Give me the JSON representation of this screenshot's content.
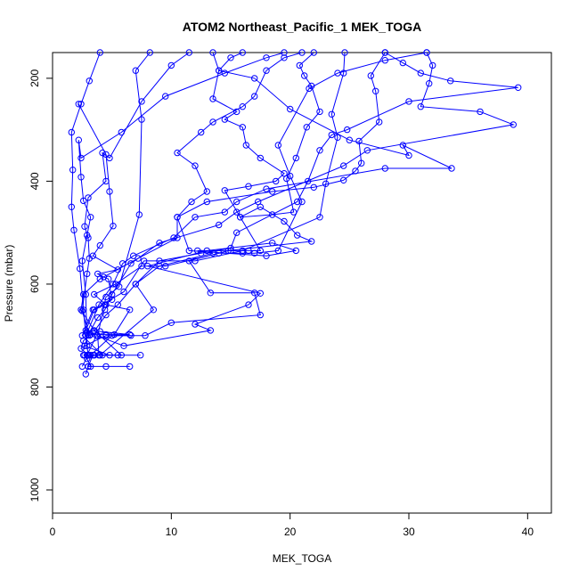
{
  "chart_data": {
    "type": "line",
    "title": "ATOM2 Northeast_Pacific_1 MEK_TOGA",
    "xlabel": "MEK_TOGA",
    "ylabel": "Pressure (mbar)",
    "xlim": [
      0,
      42
    ],
    "ylim": [
      1045,
      150
    ],
    "y_reversed": true,
    "x_ticks": [
      0,
      10,
      20,
      30,
      40
    ],
    "y_ticks": [
      200,
      400,
      600,
      800,
      1000
    ],
    "grid": false,
    "legend": "none",
    "color": "#0000ff",
    "markers": "open-circle",
    "series": [
      {
        "values": [
          {
            "x": 2.8,
            "y": 775
          },
          {
            "x": 3.0,
            "y": 760
          },
          {
            "x": 6.5,
            "y": 760
          },
          {
            "x": 4.5,
            "y": 760
          },
          {
            "x": 3.2,
            "y": 760
          },
          {
            "x": 2.9,
            "y": 745
          },
          {
            "x": 3.5,
            "y": 738
          },
          {
            "x": 5.5,
            "y": 738
          },
          {
            "x": 7.4,
            "y": 738
          },
          {
            "x": 3.0,
            "y": 738
          },
          {
            "x": 2.4,
            "y": 725
          },
          {
            "x": 2.6,
            "y": 710
          },
          {
            "x": 3.2,
            "y": 698
          },
          {
            "x": 4.5,
            "y": 698
          },
          {
            "x": 6.5,
            "y": 698
          },
          {
            "x": 4.0,
            "y": 692
          },
          {
            "x": 2.8,
            "y": 690
          },
          {
            "x": 3.5,
            "y": 650
          },
          {
            "x": 4.4,
            "y": 640
          },
          {
            "x": 5.0,
            "y": 630
          },
          {
            "x": 4.7,
            "y": 590
          },
          {
            "x": 4.3,
            "y": 586
          },
          {
            "x": 3.8,
            "y": 580
          },
          {
            "x": 5.5,
            "y": 572
          },
          {
            "x": 3.4,
            "y": 545
          },
          {
            "x": 4.0,
            "y": 525
          },
          {
            "x": 5.1,
            "y": 487
          },
          {
            "x": 4.8,
            "y": 420
          },
          {
            "x": 4.5,
            "y": 348
          },
          {
            "x": 2.2,
            "y": 250
          }
        ]
      },
      {
        "values": [
          {
            "x": 2.5,
            "y": 760
          },
          {
            "x": 3.0,
            "y": 738
          },
          {
            "x": 2.8,
            "y": 700
          },
          {
            "x": 2.6,
            "y": 650
          },
          {
            "x": 2.3,
            "y": 570
          },
          {
            "x": 1.8,
            "y": 495
          },
          {
            "x": 1.6,
            "y": 450
          },
          {
            "x": 1.7,
            "y": 378
          },
          {
            "x": 1.6,
            "y": 305
          },
          {
            "x": 2.4,
            "y": 250
          },
          {
            "x": 3.1,
            "y": 205
          },
          {
            "x": 4.0,
            "y": 150
          }
        ]
      },
      {
        "values": [
          {
            "x": 2.7,
            "y": 738
          },
          {
            "x": 3.2,
            "y": 738
          },
          {
            "x": 5.0,
            "y": 700
          },
          {
            "x": 7.8,
            "y": 700
          },
          {
            "x": 10.0,
            "y": 675
          },
          {
            "x": 17.5,
            "y": 660
          },
          {
            "x": 17.0,
            "y": 617
          },
          {
            "x": 13.3,
            "y": 617
          },
          {
            "x": 11.5,
            "y": 555
          },
          {
            "x": 14.8,
            "y": 535
          },
          {
            "x": 21.8,
            "y": 517
          },
          {
            "x": 20.6,
            "y": 505
          },
          {
            "x": 19.5,
            "y": 478
          },
          {
            "x": 17.5,
            "y": 450
          },
          {
            "x": 15.8,
            "y": 470
          },
          {
            "x": 14.5,
            "y": 418
          },
          {
            "x": 16.5,
            "y": 410
          },
          {
            "x": 18.8,
            "y": 400
          },
          {
            "x": 19.5,
            "y": 385
          },
          {
            "x": 17.5,
            "y": 355
          },
          {
            "x": 16.3,
            "y": 330
          },
          {
            "x": 16.0,
            "y": 295
          },
          {
            "x": 14.5,
            "y": 280
          },
          {
            "x": 15.5,
            "y": 265
          },
          {
            "x": 13.5,
            "y": 240
          },
          {
            "x": 14.0,
            "y": 185
          },
          {
            "x": 15.0,
            "y": 160
          },
          {
            "x": 16.0,
            "y": 150
          }
        ]
      },
      {
        "values": [
          {
            "x": 2.9,
            "y": 738
          },
          {
            "x": 3.7,
            "y": 700
          },
          {
            "x": 6.0,
            "y": 720
          },
          {
            "x": 13.3,
            "y": 690
          },
          {
            "x": 12.0,
            "y": 678
          },
          {
            "x": 16.5,
            "y": 640
          },
          {
            "x": 17.5,
            "y": 618
          },
          {
            "x": 8.0,
            "y": 565
          },
          {
            "x": 13.0,
            "y": 535
          },
          {
            "x": 18.5,
            "y": 520
          },
          {
            "x": 20.5,
            "y": 535
          },
          {
            "x": 18.0,
            "y": 545
          },
          {
            "x": 11.5,
            "y": 535
          },
          {
            "x": 10.5,
            "y": 470
          },
          {
            "x": 13.0,
            "y": 440
          },
          {
            "x": 18.5,
            "y": 420
          },
          {
            "x": 22.0,
            "y": 412
          },
          {
            "x": 24.5,
            "y": 398
          },
          {
            "x": 25.5,
            "y": 380
          },
          {
            "x": 26.0,
            "y": 365
          },
          {
            "x": 25.8,
            "y": 322
          },
          {
            "x": 27.5,
            "y": 285
          },
          {
            "x": 27.2,
            "y": 225
          },
          {
            "x": 26.8,
            "y": 195
          },
          {
            "x": 28.0,
            "y": 150
          }
        ]
      },
      {
        "values": [
          {
            "x": 3.0,
            "y": 760
          },
          {
            "x": 3.4,
            "y": 738
          },
          {
            "x": 4.0,
            "y": 738
          },
          {
            "x": 8.5,
            "y": 650
          },
          {
            "x": 7.0,
            "y": 600
          },
          {
            "x": 9.0,
            "y": 565
          },
          {
            "x": 13.5,
            "y": 540
          },
          {
            "x": 12.2,
            "y": 535
          },
          {
            "x": 15.0,
            "y": 535
          },
          {
            "x": 16.5,
            "y": 535
          },
          {
            "x": 17.5,
            "y": 535
          },
          {
            "x": 15.8,
            "y": 470
          },
          {
            "x": 18.5,
            "y": 465
          },
          {
            "x": 20.3,
            "y": 460
          },
          {
            "x": 19.7,
            "y": 395
          },
          {
            "x": 20.5,
            "y": 355
          },
          {
            "x": 21.4,
            "y": 295
          },
          {
            "x": 22.5,
            "y": 265
          },
          {
            "x": 21.8,
            "y": 215
          },
          {
            "x": 21.2,
            "y": 195
          },
          {
            "x": 20.8,
            "y": 175
          },
          {
            "x": 22.0,
            "y": 150
          }
        ]
      },
      {
        "values": [
          {
            "x": 3.5,
            "y": 738
          },
          {
            "x": 4.8,
            "y": 738
          },
          {
            "x": 2.7,
            "y": 720
          },
          {
            "x": 4.5,
            "y": 700
          },
          {
            "x": 6.6,
            "y": 700
          },
          {
            "x": 5.2,
            "y": 698
          },
          {
            "x": 6.5,
            "y": 650
          },
          {
            "x": 4.5,
            "y": 640
          },
          {
            "x": 3.5,
            "y": 620
          },
          {
            "x": 5.3,
            "y": 600
          },
          {
            "x": 7.5,
            "y": 565
          },
          {
            "x": 9.5,
            "y": 565
          },
          {
            "x": 14.0,
            "y": 540
          },
          {
            "x": 16.0,
            "y": 540
          },
          {
            "x": 17.0,
            "y": 540
          },
          {
            "x": 19.0,
            "y": 535
          },
          {
            "x": 21.0,
            "y": 440
          },
          {
            "x": 20.0,
            "y": 390
          },
          {
            "x": 19.0,
            "y": 330
          },
          {
            "x": 21.6,
            "y": 220
          },
          {
            "x": 24.0,
            "y": 190
          },
          {
            "x": 28.0,
            "y": 165
          },
          {
            "x": 31.5,
            "y": 150
          }
        ]
      },
      {
        "values": [
          {
            "x": 2.6,
            "y": 738
          },
          {
            "x": 5.8,
            "y": 738
          },
          {
            "x": 3.5,
            "y": 690
          },
          {
            "x": 2.4,
            "y": 650
          },
          {
            "x": 2.6,
            "y": 620
          },
          {
            "x": 4.0,
            "y": 590
          },
          {
            "x": 7.2,
            "y": 550
          },
          {
            "x": 10.5,
            "y": 510
          },
          {
            "x": 10.5,
            "y": 470
          },
          {
            "x": 11.7,
            "y": 440
          },
          {
            "x": 13.0,
            "y": 420
          },
          {
            "x": 12.0,
            "y": 370
          },
          {
            "x": 10.5,
            "y": 345
          },
          {
            "x": 12.5,
            "y": 305
          },
          {
            "x": 13.5,
            "y": 285
          },
          {
            "x": 16.0,
            "y": 255
          },
          {
            "x": 17.0,
            "y": 235
          },
          {
            "x": 18.0,
            "y": 185
          },
          {
            "x": 19.5,
            "y": 160
          },
          {
            "x": 21.0,
            "y": 150
          }
        ]
      },
      {
        "values": [
          {
            "x": 3.0,
            "y": 738
          },
          {
            "x": 3.9,
            "y": 738
          },
          {
            "x": 3.8,
            "y": 700
          },
          {
            "x": 4.5,
            "y": 625
          },
          {
            "x": 5.6,
            "y": 605
          },
          {
            "x": 7.3,
            "y": 465
          },
          {
            "x": 7.5,
            "y": 280
          },
          {
            "x": 7.0,
            "y": 185
          },
          {
            "x": 8.2,
            "y": 150
          }
        ]
      },
      {
        "values": [
          {
            "x": 4.2,
            "y": 738
          },
          {
            "x": 2.5,
            "y": 700
          },
          {
            "x": 3.4,
            "y": 650
          },
          {
            "x": 6.0,
            "y": 615
          },
          {
            "x": 7.7,
            "y": 555
          },
          {
            "x": 12.0,
            "y": 555
          },
          {
            "x": 16.0,
            "y": 535
          },
          {
            "x": 22.5,
            "y": 470
          },
          {
            "x": 23.0,
            "y": 405
          },
          {
            "x": 24.0,
            "y": 315
          },
          {
            "x": 23.5,
            "y": 270
          },
          {
            "x": 24.5,
            "y": 190
          },
          {
            "x": 24.6,
            "y": 150
          }
        ]
      },
      {
        "values": [
          {
            "x": 2.9,
            "y": 720
          },
          {
            "x": 2.8,
            "y": 620
          },
          {
            "x": 2.5,
            "y": 555
          },
          {
            "x": 2.9,
            "y": 505
          },
          {
            "x": 3.2,
            "y": 470
          },
          {
            "x": 2.6,
            "y": 438
          },
          {
            "x": 2.4,
            "y": 392
          },
          {
            "x": 2.2,
            "y": 320
          },
          {
            "x": 2.4,
            "y": 355
          },
          {
            "x": 5.8,
            "y": 305
          },
          {
            "x": 9.5,
            "y": 235
          },
          {
            "x": 14.5,
            "y": 190
          },
          {
            "x": 18.0,
            "y": 160
          },
          {
            "x": 19.5,
            "y": 150
          }
        ]
      },
      {
        "values": [
          {
            "x": 3.1,
            "y": 700
          },
          {
            "x": 2.5,
            "y": 652
          },
          {
            "x": 2.9,
            "y": 580
          },
          {
            "x": 3.1,
            "y": 550
          },
          {
            "x": 3.0,
            "y": 510
          },
          {
            "x": 2.7,
            "y": 488
          },
          {
            "x": 3.0,
            "y": 432
          },
          {
            "x": 4.5,
            "y": 400
          },
          {
            "x": 4.2,
            "y": 345
          },
          {
            "x": 4.8,
            "y": 355
          },
          {
            "x": 7.5,
            "y": 245
          },
          {
            "x": 10.0,
            "y": 175
          },
          {
            "x": 11.5,
            "y": 150
          }
        ]
      },
      {
        "values": [
          {
            "x": 3.0,
            "y": 698
          },
          {
            "x": 3.8,
            "y": 665
          },
          {
            "x": 4.4,
            "y": 650
          },
          {
            "x": 5.0,
            "y": 620
          },
          {
            "x": 6.6,
            "y": 560
          },
          {
            "x": 9.0,
            "y": 520
          },
          {
            "x": 14.0,
            "y": 485
          },
          {
            "x": 15.5,
            "y": 460
          },
          {
            "x": 17.3,
            "y": 440
          },
          {
            "x": 24.5,
            "y": 370
          },
          {
            "x": 26.5,
            "y": 340
          },
          {
            "x": 38.8,
            "y": 290
          },
          {
            "x": 36.0,
            "y": 265
          },
          {
            "x": 31.0,
            "y": 255
          },
          {
            "x": 31.7,
            "y": 210
          },
          {
            "x": 32.0,
            "y": 175
          },
          {
            "x": 31.5,
            "y": 150
          }
        ]
      },
      {
        "values": [
          {
            "x": 2.9,
            "y": 695
          },
          {
            "x": 3.9,
            "y": 640
          },
          {
            "x": 5.1,
            "y": 600
          },
          {
            "x": 5.9,
            "y": 560
          },
          {
            "x": 6.8,
            "y": 545
          },
          {
            "x": 10.2,
            "y": 510
          },
          {
            "x": 12.0,
            "y": 470
          },
          {
            "x": 14.5,
            "y": 460
          },
          {
            "x": 15.5,
            "y": 440
          },
          {
            "x": 18.0,
            "y": 415
          },
          {
            "x": 28.0,
            "y": 375
          },
          {
            "x": 33.6,
            "y": 375
          },
          {
            "x": 29.5,
            "y": 330
          },
          {
            "x": 30.0,
            "y": 350
          },
          {
            "x": 25.0,
            "y": 320
          },
          {
            "x": 20.0,
            "y": 260
          },
          {
            "x": 17.0,
            "y": 200
          },
          {
            "x": 14.0,
            "y": 185
          },
          {
            "x": 13.5,
            "y": 150
          }
        ]
      },
      {
        "values": [
          {
            "x": 3.5,
            "y": 692
          },
          {
            "x": 4.5,
            "y": 660
          },
          {
            "x": 5.5,
            "y": 640
          },
          {
            "x": 7.0,
            "y": 600
          },
          {
            "x": 9.0,
            "y": 555
          },
          {
            "x": 12.5,
            "y": 540
          },
          {
            "x": 15.0,
            "y": 530
          },
          {
            "x": 15.5,
            "y": 500
          },
          {
            "x": 20.6,
            "y": 440
          },
          {
            "x": 21.5,
            "y": 400
          },
          {
            "x": 22.5,
            "y": 340
          },
          {
            "x": 23.5,
            "y": 310
          },
          {
            "x": 24.8,
            "y": 300
          },
          {
            "x": 30.0,
            "y": 245
          },
          {
            "x": 39.2,
            "y": 218
          },
          {
            "x": 33.5,
            "y": 205
          },
          {
            "x": 31.0,
            "y": 190
          },
          {
            "x": 29.5,
            "y": 170
          },
          {
            "x": 28.0,
            "y": 150
          }
        ]
      }
    ]
  }
}
